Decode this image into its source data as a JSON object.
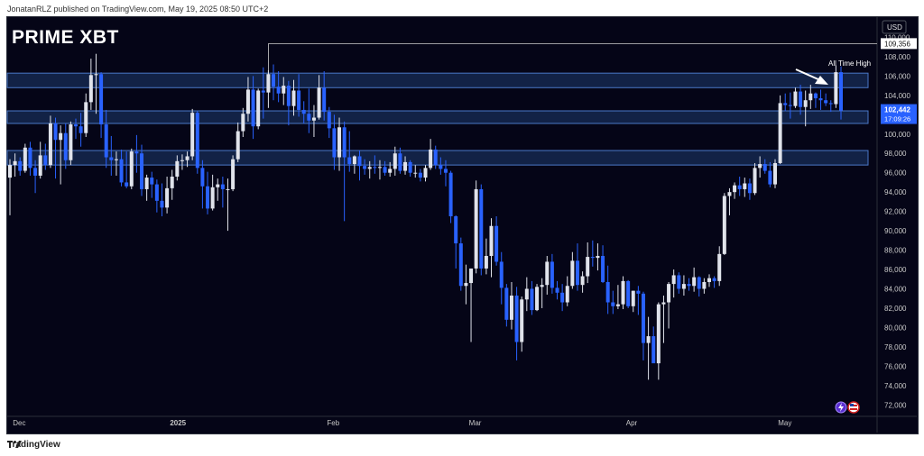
{
  "header": {
    "text": "JonatanRLZ published on TradingView.com, May 19, 2025 08:50 UTC+2"
  },
  "footer": {
    "logo_text": "TradingView"
  },
  "brand": {
    "name": "PRIME XBT"
  },
  "currency": "USD",
  "colors": {
    "background": "#050517",
    "up_candle": "#e0e3eb",
    "down_candle": "#2962ff",
    "zone_fill": "#1e3a6e",
    "zone_border": "#4a78c8",
    "axis_text": "#c8c8c8"
  },
  "chart_data": {
    "type": "candlestick",
    "y_axis": {
      "min": 71000,
      "max": 112000,
      "ticks": [
        "72,000",
        "74,000",
        "76,000",
        "78,000",
        "80,000",
        "82,000",
        "84,000",
        "86,000",
        "88,000",
        "90,000",
        "92,000",
        "94,000",
        "96,000",
        "98,000",
        "100,000",
        "102,000",
        "104,000",
        "106,000",
        "108,000",
        "110,000"
      ],
      "tick_values": [
        72000,
        74000,
        76000,
        78000,
        80000,
        82000,
        84000,
        86000,
        88000,
        90000,
        92000,
        94000,
        96000,
        98000,
        100000,
        102000,
        104000,
        106000,
        108000,
        110000
      ]
    },
    "x_axis": {
      "labels": [
        {
          "text": "Dec",
          "index": 2
        },
        {
          "text": "2025",
          "index": 33
        },
        {
          "text": "Feb",
          "index": 64
        },
        {
          "text": "Mar",
          "index": 92
        },
        {
          "text": "Apr",
          "index": 123
        },
        {
          "text": "May",
          "index": 153
        }
      ]
    },
    "price_labels": {
      "ath": "109,356",
      "current": "102,442",
      "countdown": "17:09:26"
    },
    "ath_value": 109356,
    "current_value": 102442,
    "annotation": "All Time High",
    "zones": [
      {
        "low": 104800,
        "high": 106300
      },
      {
        "low": 101100,
        "high": 102400
      },
      {
        "low": 96800,
        "high": 98300
      }
    ],
    "candles": [
      [
        95500,
        97400,
        91600,
        96800
      ],
      [
        96800,
        98000,
        95600,
        97200
      ],
      [
        97200,
        97600,
        95700,
        96200
      ],
      [
        96200,
        99000,
        96000,
        98600
      ],
      [
        98600,
        99200,
        95700,
        96500
      ],
      [
        96500,
        97300,
        93900,
        95700
      ],
      [
        95700,
        99200,
        95400,
        97800
      ],
      [
        97800,
        99000,
        96300,
        96800
      ],
      [
        96800,
        101900,
        96500,
        101100
      ],
      [
        101100,
        101700,
        95400,
        99400
      ],
      [
        99400,
        100900,
        94800,
        100100
      ],
      [
        100100,
        101100,
        96400,
        97300
      ],
      [
        97300,
        101300,
        96800,
        101000
      ],
      [
        101000,
        101600,
        99500,
        100800
      ],
      [
        100800,
        102200,
        98700,
        100100
      ],
      [
        100100,
        104200,
        99700,
        103300
      ],
      [
        103300,
        107800,
        102500,
        106100
      ],
      [
        106100,
        108300,
        102100,
        106200
      ],
      [
        106200,
        106400,
        99600,
        101000
      ],
      [
        101000,
        102500,
        96500,
        97600
      ],
      [
        97600,
        99800,
        95700,
        97300
      ],
      [
        97300,
        98200,
        95700,
        97400
      ],
      [
        97400,
        98400,
        94600,
        95000
      ],
      [
        95000,
        98200,
        94400,
        94600
      ],
      [
        94600,
        98500,
        94300,
        98200
      ],
      [
        98200,
        99900,
        96000,
        98000
      ],
      [
        98000,
        98900,
        93600,
        94300
      ],
      [
        94300,
        95800,
        93100,
        95500
      ],
      [
        95500,
        96100,
        93400,
        94800
      ],
      [
        94800,
        95300,
        91900,
        93100
      ],
      [
        93100,
        94900,
        91500,
        92400
      ],
      [
        92400,
        95600,
        91800,
        94400
      ],
      [
        94400,
        96300,
        93200,
        95600
      ],
      [
        95600,
        97800,
        95200,
        97200
      ],
      [
        97200,
        97900,
        96300,
        97300
      ],
      [
        97300,
        98200,
        96600,
        97700
      ],
      [
        97700,
        102600,
        97300,
        102200
      ],
      [
        102200,
        102400,
        95900,
        96500
      ],
      [
        96500,
        97300,
        92300,
        94600
      ],
      [
        94600,
        96100,
        91700,
        92300
      ],
      [
        92300,
        95800,
        92100,
        94500
      ],
      [
        94500,
        95400,
        93100,
        94800
      ],
      [
        94800,
        95600,
        92400,
        94300
      ],
      [
        94300,
        95400,
        90000,
        94300
      ],
      [
        94300,
        97800,
        94100,
        97400
      ],
      [
        97400,
        101200,
        97100,
        100300
      ],
      [
        100300,
        102700,
        99700,
        102100
      ],
      [
        102100,
        105900,
        101300,
        104600
      ],
      [
        104600,
        106000,
        99500,
        100800
      ],
      [
        100800,
        104700,
        100500,
        104500
      ],
      [
        104500,
        106900,
        101600,
        104300
      ],
      [
        104300,
        106600,
        102700,
        106200
      ],
      [
        106200,
        107200,
        103500,
        104900
      ],
      [
        104900,
        106500,
        103300,
        104200
      ],
      [
        104200,
        105900,
        103000,
        105000
      ],
      [
        105000,
        105500,
        100900,
        102900
      ],
      [
        102900,
        105600,
        101900,
        104500
      ],
      [
        104500,
        106200,
        101800,
        102500
      ],
      [
        102500,
        103400,
        101100,
        102100
      ],
      [
        102100,
        104700,
        100100,
        101400
      ],
      [
        101400,
        103000,
        99700,
        101700
      ],
      [
        101700,
        106100,
        101500,
        104800
      ],
      [
        104800,
        106500,
        101400,
        102300
      ],
      [
        102300,
        102800,
        99600,
        100600
      ],
      [
        100600,
        102000,
        96300,
        97600
      ],
      [
        97600,
        101700,
        96200,
        100700
      ],
      [
        100700,
        101300,
        91000,
        97600
      ],
      [
        97600,
        100300,
        96100,
        96900
      ],
      [
        96900,
        97800,
        95900,
        97700
      ],
      [
        97700,
        98300,
        95200,
        96700
      ],
      [
        96700,
        97400,
        95800,
        96400
      ],
      [
        96400,
        97200,
        95400,
        96600
      ],
      [
        96600,
        97800,
        95900,
        96500
      ],
      [
        96500,
        97300,
        95300,
        96600
      ],
      [
        96600,
        97200,
        95700,
        96000
      ],
      [
        96000,
        97100,
        95600,
        96400
      ],
      [
        96400,
        98700,
        95700,
        98000
      ],
      [
        98000,
        98600,
        95900,
        96200
      ],
      [
        96200,
        97700,
        95800,
        97100
      ],
      [
        97100,
        97300,
        95600,
        96000
      ],
      [
        96000,
        96800,
        95500,
        96000
      ],
      [
        96000,
        96400,
        95100,
        95500
      ],
      [
        95500,
        96800,
        95100,
        96500
      ],
      [
        96500,
        99500,
        96300,
        98400
      ],
      [
        98400,
        98800,
        96400,
        96800
      ],
      [
        96800,
        97600,
        95800,
        96400
      ],
      [
        96400,
        97300,
        94600,
        96000
      ],
      [
        96000,
        96200,
        90800,
        91500
      ],
      [
        91500,
        91600,
        86100,
        88700
      ],
      [
        88700,
        89300,
        83800,
        84300
      ],
      [
        84300,
        86500,
        82400,
        84600
      ],
      [
        84600,
        86100,
        78500,
        86100
      ],
      [
        86100,
        95200,
        85600,
        94300
      ],
      [
        94300,
        94800,
        85400,
        86100
      ],
      [
        86100,
        89200,
        85500,
        87400
      ],
      [
        87400,
        91300,
        85200,
        90500
      ],
      [
        90500,
        91500,
        86400,
        86800
      ],
      [
        86800,
        87800,
        82400,
        84100
      ],
      [
        84100,
        84500,
        80100,
        80800
      ],
      [
        80800,
        84700,
        79800,
        83300
      ],
      [
        83300,
        84200,
        76600,
        78500
      ],
      [
        78500,
        83200,
        77500,
        82900
      ],
      [
        82900,
        85200,
        81700,
        84000
      ],
      [
        84000,
        84800,
        81300,
        81800
      ],
      [
        81800,
        84500,
        81700,
        84200
      ],
      [
        84200,
        85100,
        82000,
        84400
      ],
      [
        84400,
        87400,
        83400,
        86800
      ],
      [
        86800,
        87600,
        83500,
        84100
      ],
      [
        84100,
        84800,
        82900,
        83600
      ],
      [
        83600,
        84500,
        81700,
        82600
      ],
      [
        82600,
        85300,
        82200,
        84300
      ],
      [
        84300,
        87800,
        84000,
        86900
      ],
      [
        86900,
        88700,
        83800,
        84400
      ],
      [
        84400,
        85800,
        83600,
        85300
      ],
      [
        85300,
        88800,
        84600,
        87300
      ],
      [
        87300,
        89000,
        86300,
        87200
      ],
      [
        87200,
        88700,
        85900,
        87400
      ],
      [
        87400,
        88500,
        84600,
        84700
      ],
      [
        84700,
        86400,
        81400,
        82600
      ],
      [
        82600,
        83800,
        81400,
        82200
      ],
      [
        82200,
        84400,
        81900,
        82400
      ],
      [
        82400,
        85300,
        81900,
        84800
      ],
      [
        84800,
        84900,
        82000,
        82200
      ],
      [
        82200,
        83800,
        81600,
        83800
      ],
      [
        83800,
        84300,
        81300,
        83500
      ],
      [
        83500,
        83700,
        76600,
        78400
      ],
      [
        78400,
        81100,
        74600,
        79100
      ],
      [
        79100,
        80100,
        76600,
        76300
      ],
      [
        76300,
        82600,
        74600,
        82400
      ],
      [
        82400,
        83300,
        78400,
        82600
      ],
      [
        82600,
        84700,
        79900,
        84500
      ],
      [
        84500,
        86000,
        83100,
        85400
      ],
      [
        85400,
        85700,
        83500,
        84000
      ],
      [
        84000,
        85400,
        83300,
        84500
      ],
      [
        84500,
        85100,
        83800,
        84300
      ],
      [
        84300,
        86200,
        83700,
        85200
      ],
      [
        85200,
        85300,
        83200,
        84000
      ],
      [
        84000,
        85100,
        83500,
        84700
      ],
      [
        84700,
        85500,
        84200,
        85100
      ],
      [
        85100,
        85300,
        84100,
        84800
      ],
      [
        84800,
        88400,
        84300,
        87600
      ],
      [
        87600,
        93900,
        87500,
        93600
      ],
      [
        93600,
        94400,
        91600,
        94000
      ],
      [
        94000,
        95000,
        93300,
        94700
      ],
      [
        94700,
        95600,
        93600,
        94300
      ],
      [
        94300,
        95500,
        93500,
        94900
      ],
      [
        94900,
        95400,
        93200,
        93900
      ],
      [
        93900,
        97000,
        93700,
        96500
      ],
      [
        96500,
        97700,
        95500,
        96900
      ],
      [
        96900,
        97400,
        95900,
        96200
      ],
      [
        96200,
        97100,
        94500,
        94800
      ],
      [
        94800,
        97400,
        94400,
        97000
      ],
      [
        97000,
        104000,
        96900,
        103200
      ],
      [
        103200,
        104200,
        102400,
        103000
      ],
      [
        103000,
        104300,
        101600,
        102900
      ],
      [
        102900,
        104800,
        102700,
        104400
      ],
      [
        104400,
        105100,
        102000,
        102800
      ],
      [
        102800,
        104500,
        100800,
        103500
      ],
      [
        103500,
        105100,
        102600,
        104200
      ],
      [
        104200,
        104300,
        102700,
        103700
      ],
      [
        103700,
        104600,
        102500,
        103500
      ],
      [
        103500,
        104200,
        102900,
        103200
      ],
      [
        103200,
        103500,
        102300,
        103100
      ],
      [
        103100,
        107100,
        102700,
        106400
      ],
      [
        106400,
        107000,
        101500,
        102442
      ]
    ]
  }
}
